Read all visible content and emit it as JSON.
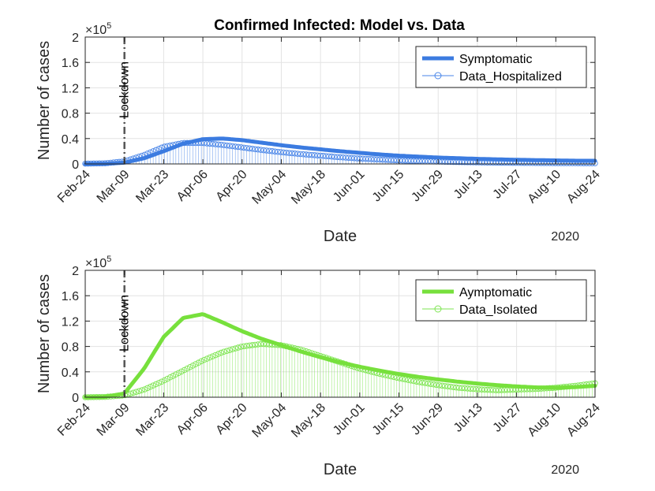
{
  "figure_title": "Confirmed Infected: Model vs. Data",
  "chart_data": [
    {
      "type": "line",
      "x": [
        "Feb-24",
        "Mar-02",
        "Mar-09",
        "Mar-16",
        "Mar-23",
        "Mar-30",
        "Apr-06",
        "Apr-13",
        "Apr-20",
        "Apr-27",
        "May-04",
        "May-11",
        "May-18",
        "May-25",
        "Jun-01",
        "Jun-08",
        "Jun-15",
        "Jun-22",
        "Jun-29",
        "Jul-06",
        "Jul-13",
        "Jul-20",
        "Jul-27",
        "Aug-03",
        "Aug-10",
        "Aug-17",
        "Aug-24"
      ],
      "series": [
        {
          "name": "Symptomatic",
          "style": "thick-line",
          "color": "#3b7be0",
          "values": [
            0,
            300,
            2000,
            9000,
            20000,
            32000,
            39000,
            40000,
            37500,
            33500,
            29500,
            26000,
            23000,
            20000,
            17500,
            15000,
            13000,
            11500,
            10000,
            9000,
            8000,
            7200,
            6500,
            6000,
            5500,
            5000,
            5000
          ]
        },
        {
          "name": "Data_Hospitalized",
          "style": "stem-circles",
          "color": "#4a86e8",
          "values": [
            500,
            1000,
            4000,
            14000,
            27000,
            33000,
            33000,
            30000,
            26000,
            22000,
            18500,
            15500,
            13000,
            10500,
            8500,
            7000,
            5500,
            4500,
            3700,
            3000,
            2500,
            2000,
            1700,
            1500,
            1300,
            1200,
            1100
          ]
        }
      ],
      "ylim": [
        0,
        200000
      ],
      "yticks": [
        0,
        40000,
        80000,
        120000,
        160000,
        200000
      ],
      "yticklabels": [
        "0",
        "0.4",
        "0.8",
        "1.2",
        "1.6",
        "2"
      ],
      "y_exponent": "×10",
      "y_exponent_power": "5",
      "xticklabels": [
        "Feb-24",
        "Mar-09",
        "Mar-23",
        "Apr-06",
        "Apr-20",
        "May-04",
        "May-18",
        "Jun-01",
        "Jun-15",
        "Jun-29",
        "Jul-13",
        "Jul-27",
        "Aug-10",
        "Aug-24"
      ],
      "xlabel": "Date",
      "ylabel": "Number of cases",
      "year_label": "2020",
      "annotation": {
        "label": "Lockdown",
        "x": "Mar-09"
      },
      "legend": [
        "Symptomatic",
        "Data_Hospitalized"
      ],
      "legend_position": "top-right",
      "grid": true
    },
    {
      "type": "line",
      "x": [
        "Feb-24",
        "Mar-02",
        "Mar-09",
        "Mar-16",
        "Mar-23",
        "Mar-30",
        "Apr-06",
        "Apr-13",
        "Apr-20",
        "Apr-27",
        "May-04",
        "May-11",
        "May-18",
        "May-25",
        "Jun-01",
        "Jun-08",
        "Jun-15",
        "Jun-22",
        "Jun-29",
        "Jul-06",
        "Jul-13",
        "Jul-20",
        "Jul-27",
        "Aug-03",
        "Aug-10",
        "Aug-17",
        "Aug-24"
      ],
      "series": [
        {
          "name": "Aymptomatic",
          "style": "thick-line",
          "color": "#77e03c",
          "values": [
            0,
            500,
            6000,
            45000,
            95000,
            125000,
            131000,
            118000,
            104000,
            92000,
            82000,
            72000,
            63000,
            55000,
            48000,
            42000,
            36500,
            32000,
            28000,
            24500,
            21500,
            19000,
            17000,
            15500,
            15000,
            16000,
            18000
          ]
        },
        {
          "name": "Data_Isolated",
          "style": "stem-circles",
          "color": "#7ee552",
          "values": [
            0,
            500,
            3000,
            12000,
            26000,
            42000,
            58000,
            71000,
            80000,
            84000,
            82000,
            75000,
            65000,
            55000,
            45000,
            37000,
            30000,
            24000,
            19000,
            15000,
            12500,
            11000,
            12000,
            13000,
            15000,
            18000,
            22000
          ]
        }
      ],
      "ylim": [
        0,
        200000
      ],
      "yticks": [
        0,
        40000,
        80000,
        120000,
        160000,
        200000
      ],
      "yticklabels": [
        "0",
        "0.4",
        "0.8",
        "1.2",
        "1.6",
        "2"
      ],
      "y_exponent": "×10",
      "y_exponent_power": "5",
      "xticklabels": [
        "Feb-24",
        "Mar-09",
        "Mar-23",
        "Apr-06",
        "Apr-20",
        "May-04",
        "May-18",
        "Jun-01",
        "Jun-15",
        "Jun-29",
        "Jul-13",
        "Jul-27",
        "Aug-10",
        "Aug-24"
      ],
      "xlabel": "Date",
      "ylabel": "Number of cases",
      "year_label": "2020",
      "annotation": {
        "label": "Lockdown",
        "x": "Mar-09"
      },
      "legend": [
        "Aymptomatic",
        "Data_Isolated"
      ],
      "legend_position": "top-right",
      "grid": true
    }
  ]
}
